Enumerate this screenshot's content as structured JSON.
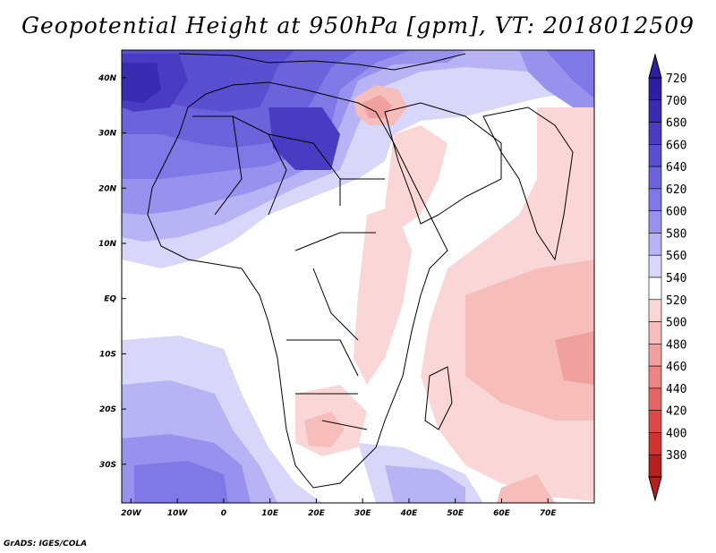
{
  "title": "Geopotential Height at 950hPa [gpm], VT: 2018012509",
  "footer": "GrADS: IGES/COLA",
  "map": {
    "lat_labels": [
      "40N",
      "30N",
      "20N",
      "10N",
      "EQ",
      "10S",
      "20S",
      "30S"
    ],
    "lat_values": [
      40,
      30,
      20,
      10,
      0,
      -10,
      -20,
      -30
    ],
    "lon_labels": [
      "20W",
      "10W",
      "0",
      "10E",
      "20E",
      "30E",
      "40E",
      "50E",
      "60E",
      "70E"
    ],
    "lon_values": [
      -20,
      -10,
      0,
      10,
      20,
      30,
      40,
      50,
      60,
      70
    ],
    "lon_range": [
      -22,
      80
    ],
    "lat_range": [
      -37,
      45
    ]
  },
  "colorbar": {
    "labels": [
      "720",
      "700",
      "680",
      "660",
      "640",
      "620",
      "600",
      "580",
      "560",
      "540",
      "520",
      "500",
      "480",
      "460",
      "440",
      "420",
      "400",
      "380"
    ],
    "colors": [
      "#2d1fa3",
      "#3a2bb3",
      "#4a3cc2",
      "#5a4fd0",
      "#6c63dc",
      "#7f78e6",
      "#9892ee",
      "#b7b3f4",
      "#d8d7f9",
      "#ffffff",
      "#fad7d6",
      "#f6bdbb",
      "#f0a09e",
      "#ea8583",
      "#e36664",
      "#dc4a48",
      "#cf3431",
      "#b8201e"
    ]
  }
}
